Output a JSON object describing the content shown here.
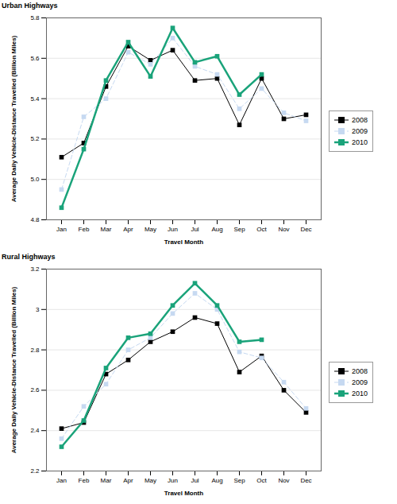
{
  "chart_data": [
    {
      "type": "line",
      "title": "Urban Highways",
      "xlabel": "Travel Month",
      "ylabel": "Average Daily Vehicle-Distance Travelled (Billion Miles)",
      "categories": [
        "Jan",
        "Feb",
        "Mar",
        "Apr",
        "May",
        "Jun",
        "Jul",
        "Aug",
        "Sep",
        "Oct",
        "Nov",
        "Dec"
      ],
      "series": [
        {
          "name": "2008",
          "color": "#000000",
          "marker": "square",
          "line_style": "solid",
          "values": [
            5.11,
            5.18,
            5.46,
            5.66,
            5.59,
            5.64,
            5.49,
            5.5,
            5.27,
            5.5,
            5.3,
            5.32
          ]
        },
        {
          "name": "2009",
          "color": "#c6d9f1",
          "marker": "square",
          "line_style": "dashed",
          "values": [
            4.95,
            5.31,
            5.4,
            5.63,
            5.57,
            5.7,
            5.56,
            5.52,
            5.35,
            5.45,
            5.33,
            5.29
          ]
        },
        {
          "name": "2010",
          "color": "#1aa37a",
          "marker": "square",
          "line_style": "solid",
          "values": [
            4.86,
            5.15,
            5.49,
            5.68,
            5.51,
            5.75,
            5.58,
            5.61,
            5.42,
            5.52,
            null,
            null
          ]
        }
      ],
      "ylim": [
        4.8,
        5.8
      ],
      "yticks": [
        4.8,
        {
          "value": 5,
          "label": "5.0"
        },
        5.2,
        5.4,
        5.6,
        5.8
      ],
      "grid": true,
      "legend": "right"
    },
    {
      "type": "line",
      "title": "Rural Highways",
      "xlabel": "Travel Month",
      "ylabel": "Average Daily Vehicle-Distance Travelled (Billion Miles)",
      "categories": [
        "Jan",
        "Feb",
        "Mar",
        "Apr",
        "May",
        "Jun",
        "Jul",
        "Aug",
        "Sep",
        "Oct",
        "Nov",
        "Dec"
      ],
      "series": [
        {
          "name": "2008",
          "color": "#000000",
          "marker": "square",
          "line_style": "solid",
          "values": [
            2.41,
            2.44,
            2.68,
            2.75,
            2.84,
            2.89,
            2.96,
            2.93,
            2.69,
            2.77,
            2.6,
            2.49
          ]
        },
        {
          "name": "2009",
          "color": "#c6d9f1",
          "marker": "square",
          "line_style": "dashed",
          "values": [
            2.36,
            2.52,
            2.63,
            2.8,
            2.86,
            2.98,
            3.08,
            3.0,
            2.79,
            2.76,
            2.64,
            2.51
          ]
        },
        {
          "name": "2010",
          "color": "#1aa37a",
          "marker": "square",
          "line_style": "solid",
          "values": [
            2.32,
            2.45,
            2.71,
            2.86,
            2.88,
            3.02,
            3.13,
            3.02,
            2.84,
            2.85,
            null,
            null
          ]
        }
      ],
      "ylim": [
        2.2,
        3.2
      ],
      "yticks": [
        2.2,
        2.4,
        2.6,
        2.8,
        3,
        3.2
      ],
      "grid": true,
      "legend": "right"
    }
  ]
}
